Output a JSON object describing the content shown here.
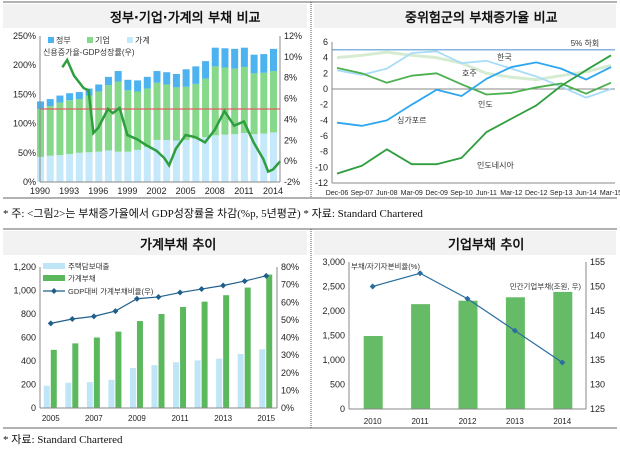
{
  "footnote_top": "* 주: <그림2>는 부채증가율에서 GDP성장률을 차감(%p, 5년평균)   * 자료: Standard Chartered",
  "footnote_bottom": "* 자료: Standard Chartered",
  "chart_data": [
    {
      "type": "bar",
      "title": "정부·기업·가계의 부채 비교",
      "subtitle": "신용증가율-GDP성장률(우)",
      "stacked": true,
      "ylim": [
        0,
        250
      ],
      "y2lim": [
        -2,
        12
      ],
      "yticks": [
        "0%",
        "50%",
        "100%",
        "150%",
        "200%",
        "250%"
      ],
      "y2ticks": [
        "-2%",
        "0%",
        "2%",
        "4%",
        "6%",
        "8%",
        "10%",
        "12%"
      ],
      "xticks": [
        "1990",
        "1993",
        "1996",
        "1999",
        "2002",
        "2005",
        "2008",
        "2011",
        "2014"
      ],
      "categories": [
        1990,
        1991,
        1992,
        1993,
        1994,
        1995,
        1996,
        1997,
        1998,
        1999,
        2000,
        2001,
        2002,
        2003,
        2004,
        2005,
        2006,
        2007,
        2008,
        2009,
        2010,
        2011,
        2012,
        2013,
        2014
      ],
      "series": [
        {
          "name": "가계",
          "color": "#c5e8fa",
          "values": [
            43,
            45,
            46,
            48,
            50,
            51,
            52,
            54,
            52,
            52,
            55,
            60,
            72,
            72,
            71,
            72,
            74,
            77,
            80,
            81,
            82,
            84,
            82,
            83,
            85
          ]
        },
        {
          "name": "기업",
          "color": "#86d98a",
          "values": [
            82,
            85,
            90,
            92,
            92,
            97,
            103,
            112,
            120,
            105,
            100,
            100,
            98,
            95,
            91,
            91,
            94,
            100,
            118,
            115,
            112,
            113,
            104,
            104,
            105
          ]
        },
        {
          "name": "정부",
          "color": "#4db3f0",
          "values": [
            13,
            12,
            12,
            12,
            12,
            12,
            12,
            14,
            18,
            18,
            19,
            20,
            20,
            21,
            23,
            30,
            30,
            30,
            32,
            33,
            34,
            33,
            32,
            32,
            38
          ]
        }
      ],
      "line": {
        "name": "신용증가율-GDP성장률(우)",
        "color": "#2e9e3e",
        "x": [
          1992.3,
          1992.8,
          1993.5,
          1994.5,
          1995,
          1995.5,
          1996,
          1996.5,
          1997,
          1997.5,
          1998.2,
          1999,
          2000,
          2001,
          2002,
          2002.8,
          2003.3,
          2004,
          2005,
          2006,
          2007,
          2008,
          2009,
          2010,
          2011,
          2012,
          2013,
          2013.5,
          2014,
          2014.75
        ],
        "values": [
          9,
          9.7,
          8.2,
          7.0,
          6.8,
          2.7,
          3.2,
          4.1,
          5.0,
          4.6,
          5.1,
          2.5,
          2.1,
          1.5,
          1.0,
          0.3,
          -0.4,
          1.2,
          2.5,
          2.3,
          1.8,
          3.0,
          4.8,
          3.4,
          3.8,
          1.8,
          0.2,
          -1.0,
          -0.8,
          0.0
        ]
      },
      "reference_line": {
        "value": 125,
        "color": "#e06060"
      }
    },
    {
      "type": "line",
      "title": "중위험군의 부채증가율 비교",
      "ylim": [
        -12,
        6
      ],
      "yticks": [
        "-12",
        "-10",
        "-8",
        "-6",
        "-4",
        "-2",
        "0",
        "2",
        "4",
        "6"
      ],
      "categories": [
        "Dec-06",
        "Sep-07",
        "Jun-08",
        "Mar-09",
        "Dec-09",
        "Sep-10",
        "Jun-11",
        "Mar-12",
        "Dec-12",
        "Sep-13",
        "Jun-14",
        "Mar-15"
      ],
      "reference_line": {
        "value": 5,
        "label": "5% 하회",
        "color": "#5b9bd5"
      },
      "series": [
        {
          "name": "호주",
          "color": "#d6ecd2",
          "values": [
            4.0,
            4.3,
            4.7,
            4.3,
            4.0,
            3.3,
            2.0,
            1.5,
            1.2,
            1.7,
            2.2,
            3.0
          ]
        },
        {
          "name": "한국",
          "color": "#a8dcf8",
          "values": [
            2.4,
            1.8,
            2.6,
            4.6,
            4.8,
            3.3,
            3.6,
            2.6,
            1.6,
            0.3,
            -1.1,
            0.0
          ]
        },
        {
          "name": "인도",
          "color": "#4cb050",
          "values": [
            2.7,
            2.0,
            0.8,
            1.7,
            2.0,
            0.6,
            -0.7,
            -0.5,
            0.2,
            0.7,
            -0.6,
            0.8
          ]
        },
        {
          "name": "싱가포르",
          "color": "#2ea6f0",
          "values": [
            -4.3,
            -4.7,
            -4.0,
            -2.0,
            -0.1,
            -0.9,
            1.3,
            2.8,
            3.4,
            2.6,
            1.2,
            2.8
          ]
        },
        {
          "name": "인도네시아",
          "color": "#2e9e3e",
          "values": [
            -10.8,
            -9.8,
            -7.7,
            -9.6,
            -9.6,
            -8.8,
            -5.5,
            -3.8,
            -2.1,
            0.4,
            2.4,
            4.3
          ]
        }
      ]
    },
    {
      "type": "bar",
      "title": "가계부채 추이",
      "ylim": [
        0,
        1200
      ],
      "y2lim": [
        0,
        80
      ],
      "yticks": [
        "0",
        "200",
        "400",
        "600",
        "800",
        "1,000",
        "1,200"
      ],
      "y2ticks": [
        "0%",
        "10%",
        "20%",
        "30%",
        "40%",
        "50%",
        "60%",
        "70%",
        "80%"
      ],
      "categories": [
        2005,
        2006,
        2007,
        2008,
        2009,
        2010,
        2011,
        2012,
        2013,
        2014,
        2015
      ],
      "xticks": [
        "2005",
        "2007",
        "2009",
        "2011",
        "2013",
        "2015"
      ],
      "series": [
        {
          "name": "주택담보대출",
          "color": "#bfe6f7",
          "values": [
            190,
            215,
            220,
            240,
            340,
            365,
            390,
            405,
            420,
            460,
            500
          ]
        },
        {
          "name": "가계부채",
          "color": "#5cb85c",
          "values": [
            495,
            550,
            600,
            650,
            740,
            800,
            860,
            905,
            960,
            1025,
            1135
          ]
        }
      ],
      "line": {
        "name": "GDP대비 가계부채비율(우)",
        "color": "#1f5f8b",
        "values": [
          48,
          50.5,
          52,
          55,
          62,
          63,
          65.5,
          67.5,
          69.5,
          72,
          75
        ]
      }
    },
    {
      "type": "bar",
      "title": "기업부채 추이",
      "ylim": [
        0,
        3000
      ],
      "y2lim": [
        125,
        155
      ],
      "yticks": [
        "0",
        "500",
        "1,000",
        "1,500",
        "2,000",
        "2,500",
        "3,000"
      ],
      "y2ticks": [
        "125",
        "130",
        "135",
        "140",
        "145",
        "150",
        "155"
      ],
      "categories": [
        "2010",
        "2011",
        "2012",
        "2013",
        "2014"
      ],
      "series": [
        {
          "name": "민간기업부채(조원, 우)",
          "color": "#66bb66",
          "values": [
            1490,
            2140,
            2210,
            2280,
            2390
          ]
        }
      ],
      "line": {
        "name": "부채/자기자본비율(%)",
        "color": "#2a6e9e",
        "values": [
          150,
          152.7,
          147.5,
          141,
          134.5
        ]
      }
    }
  ]
}
